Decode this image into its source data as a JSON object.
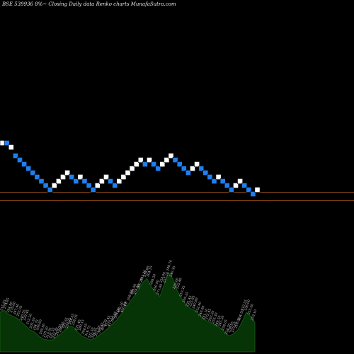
{
  "chart_data": {
    "type": "renko",
    "title": "BSE 539936  8%~  Closing Daily data  Renko  charts MunafaSutra.com",
    "colors": {
      "up_brick": "#ffffff",
      "down_brick": "#1e7ff0",
      "price_line": "#c0641e",
      "volume_fill": "#063406",
      "volume_stroke": "#1b5e1b",
      "label_text": "#d0d0d0"
    },
    "bricks": [
      {
        "dir": "up",
        "level": 1.5
      },
      {
        "dir": "down",
        "level": 1.5
      },
      {
        "dir": "up",
        "level": 1.0
      },
      {
        "dir": "down",
        "level": 0.0
      },
      {
        "dir": "down",
        "level": -0.5
      },
      {
        "dir": "down",
        "level": -1.0
      },
      {
        "dir": "down",
        "level": -1.5
      },
      {
        "dir": "down",
        "level": -2.0
      },
      {
        "dir": "down",
        "level": -2.5
      },
      {
        "dir": "down",
        "level": -3.0
      },
      {
        "dir": "down",
        "level": -3.5
      },
      {
        "dir": "down",
        "level": -4.0
      },
      {
        "dir": "up",
        "level": -3.5
      },
      {
        "dir": "up",
        "level": -3.0
      },
      {
        "dir": "up",
        "level": -2.5
      },
      {
        "dir": "up",
        "level": -2.0
      },
      {
        "dir": "down",
        "level": -2.5
      },
      {
        "dir": "down",
        "level": -3.0
      },
      {
        "dir": "up",
        "level": -2.5
      },
      {
        "dir": "down",
        "level": -3.0
      },
      {
        "dir": "down",
        "level": -3.5
      },
      {
        "dir": "down",
        "level": -4.0
      },
      {
        "dir": "up",
        "level": -3.5
      },
      {
        "dir": "up",
        "level": -3.0
      },
      {
        "dir": "up",
        "level": -2.5
      },
      {
        "dir": "down",
        "level": -3.0
      },
      {
        "dir": "down",
        "level": -3.5
      },
      {
        "dir": "up",
        "level": -3.0
      },
      {
        "dir": "up",
        "level": -2.5
      },
      {
        "dir": "up",
        "level": -2.0
      },
      {
        "dir": "up",
        "level": -1.5
      },
      {
        "dir": "up",
        "level": -1.0
      },
      {
        "dir": "up",
        "level": -0.5
      },
      {
        "dir": "down",
        "level": -1.0
      },
      {
        "dir": "up",
        "level": -0.5
      },
      {
        "dir": "down",
        "level": -1.0
      },
      {
        "dir": "down",
        "level": -1.5
      },
      {
        "dir": "up",
        "level": -1.0
      },
      {
        "dir": "up",
        "level": -0.5
      },
      {
        "dir": "up",
        "level": 0.0
      },
      {
        "dir": "down",
        "level": -0.5
      },
      {
        "dir": "down",
        "level": -1.0
      },
      {
        "dir": "down",
        "level": -1.5
      },
      {
        "dir": "down",
        "level": -2.0
      },
      {
        "dir": "up",
        "level": -1.5
      },
      {
        "dir": "up",
        "level": -1.0
      },
      {
        "dir": "down",
        "level": -1.5
      },
      {
        "dir": "down",
        "level": -2.0
      },
      {
        "dir": "down",
        "level": -2.5
      },
      {
        "dir": "down",
        "level": -3.0
      },
      {
        "dir": "up",
        "level": -2.5
      },
      {
        "dir": "down",
        "level": -3.0
      },
      {
        "dir": "down",
        "level": -3.5
      },
      {
        "dir": "down",
        "level": -4.0
      },
      {
        "dir": "up",
        "level": -3.5
      },
      {
        "dir": "up",
        "level": -3.0
      },
      {
        "dir": "down",
        "level": -3.5
      },
      {
        "dir": "down",
        "level": -4.0
      },
      {
        "dir": "down",
        "level": -4.5
      },
      {
        "dir": "up",
        "level": -4.0
      }
    ],
    "price_lines": [
      -4.3,
      -5.3
    ],
    "volume": [
      0.4,
      0.42,
      0.38,
      0.36,
      0.34,
      0.3,
      0.26,
      0.22,
      0.2,
      0.16,
      0.13,
      0.12,
      0.12,
      0.15,
      0.18,
      0.22,
      0.26,
      0.25,
      0.2,
      0.16,
      0.14,
      0.12,
      0.14,
      0.17,
      0.2,
      0.24,
      0.28,
      0.32,
      0.38,
      0.44,
      0.5,
      0.56,
      0.62,
      0.7,
      0.74,
      0.66,
      0.6,
      0.56,
      0.68,
      0.8,
      0.74,
      0.62,
      0.54,
      0.48,
      0.44,
      0.42,
      0.38,
      0.34,
      0.31,
      0.29,
      0.27,
      0.24,
      0.2,
      0.16,
      0.18,
      0.22,
      0.3,
      0.4,
      0.36,
      0.3
    ],
    "volume_labels": [
      "315.95",
      "274.85",
      "294.80",
      "279.00",
      "267.40",
      "253.05",
      "240.55",
      "229.45",
      "212.20",
      "205.50",
      "194.75",
      "206.60",
      "209.90",
      "218.20",
      "219.05",
      "235.55",
      "222.30",
      "210.00",
      "206.85",
      "221.65",
      "230.95",
      "244.05",
      "258.05",
      "271.45",
      "280.15",
      "304.05",
      "316.75",
      "325.50",
      "336.65",
      "351.50",
      "380.45",
      "402.70",
      "413.45",
      "427.15",
      "386.45",
      "384.00",
      "402.20",
      "400.60",
      "4.8",
      "398.55",
      "384.90",
      "378.35",
      "360.20",
      "343.30",
      "316.60",
      "304.15",
      "298.20",
      "290.90",
      "271.80",
      "254.00",
      "257.10",
      "248.70",
      "240.35",
      "229.00",
      "222.40",
      "210.35",
      "209.25",
      "235.45",
      "225.85",
      "240.80",
      "222.40",
      "240.80",
      "261.10",
      "272.45",
      "263.20",
      "255.30",
      "249.50",
      "245.20",
      "258.05",
      "254.70",
      "238.95",
      "227.65",
      "210.05",
      "234.50",
      "219.55",
      "236.00",
      "255.50",
      "253.10"
    ]
  }
}
